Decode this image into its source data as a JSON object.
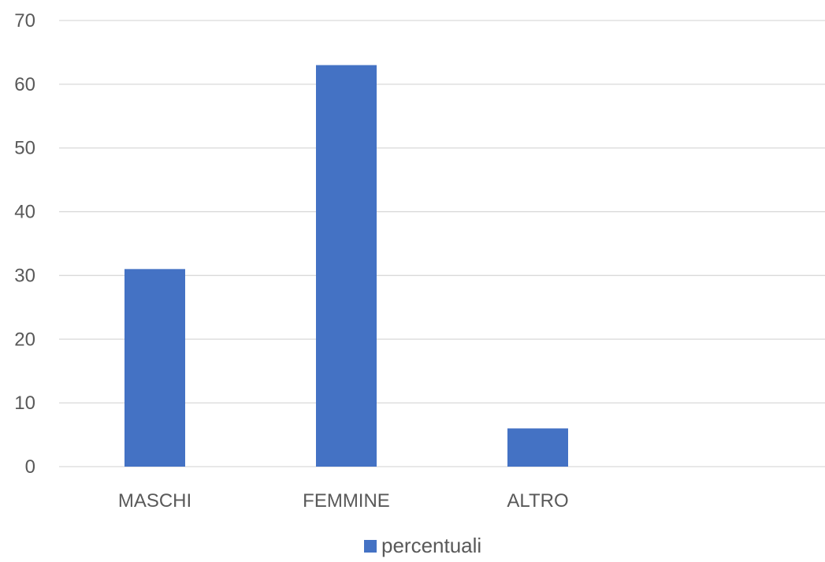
{
  "chart_data": {
    "type": "bar",
    "categories": [
      "MASCHI",
      "FEMMINE",
      "ALTRO",
      ""
    ],
    "series": [
      {
        "name": "percentuali",
        "values": [
          31,
          63,
          6,
          null
        ],
        "color": "#4472C4"
      }
    ],
    "ylim": [
      0,
      70
    ],
    "yticks": [
      0,
      10,
      20,
      30,
      40,
      50,
      60,
      70
    ],
    "grid": true,
    "gridColor": "#D9D9D9",
    "legend": {
      "position": "bottom",
      "entries": [
        "percentuali"
      ]
    },
    "title": "",
    "xlabel": "",
    "ylabel": ""
  }
}
